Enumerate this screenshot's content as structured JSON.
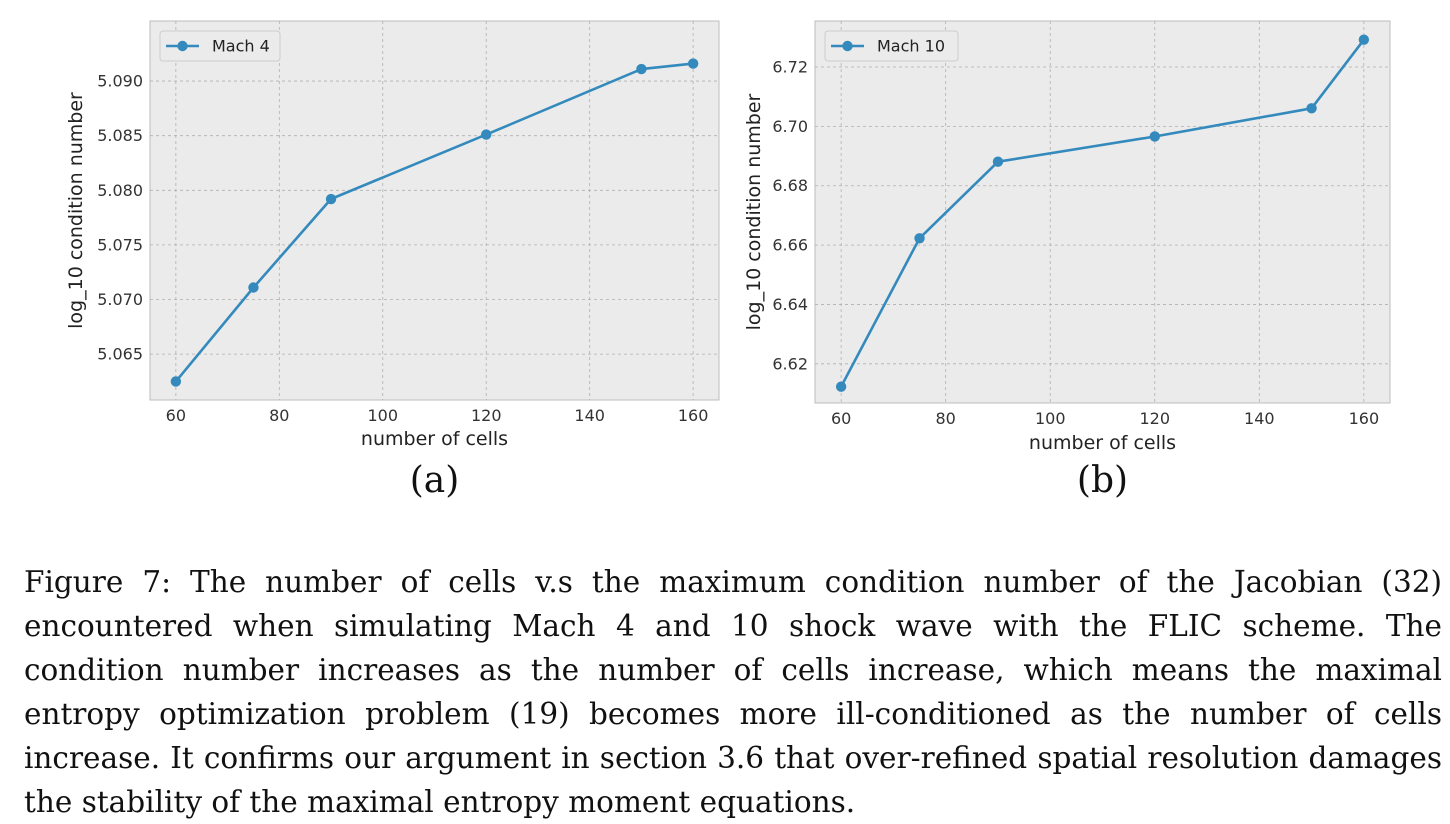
{
  "chart_data": [
    {
      "type": "line",
      "panel_label": "(a)",
      "xlabel": "number of cells",
      "ylabel": "log_10 condition number",
      "xlim": [
        55,
        165
      ],
      "ylim": [
        5.0608,
        5.0955
      ],
      "xticks": [
        "60",
        "80",
        "100",
        "120",
        "140",
        "160"
      ],
      "yticks": [
        "5.065",
        "5.070",
        "5.075",
        "5.080",
        "5.085",
        "5.090"
      ],
      "grid": true,
      "legend_position": "top-left",
      "series": [
        {
          "name": "Mach 4",
          "color": "#348abd",
          "x": [
            60,
            75,
            90,
            120,
            150,
            160
          ],
          "y": [
            5.0625,
            5.0711,
            5.0792,
            5.0851,
            5.0911,
            5.0916
          ]
        }
      ]
    },
    {
      "type": "line",
      "panel_label": "(b)",
      "xlabel": "number of cells",
      "ylabel": "log_10 condition number",
      "xlim": [
        55,
        165
      ],
      "ylim": [
        6.6068,
        6.7355
      ],
      "xticks": [
        "60",
        "80",
        "100",
        "120",
        "140",
        "160"
      ],
      "yticks": [
        "6.62",
        "6.64",
        "6.66",
        "6.68",
        "6.70",
        "6.72"
      ],
      "grid": true,
      "legend_position": "top-left",
      "series": [
        {
          "name": "Mach 10",
          "color": "#348abd",
          "x": [
            60,
            75,
            90,
            120,
            150,
            160
          ],
          "y": [
            6.6123,
            6.6623,
            6.6881,
            6.6966,
            6.7061,
            6.7292
          ]
        }
      ]
    }
  ],
  "caption": "Figure 7: The number of cells v.s the maximum condition number of the Jacobian (32) encountered when simulating Mach 4 and 10 shock wave with the FLIC scheme. The condition number increases as the number of cells increase, which means the maximal entropy optimization problem (19) becomes more ill-conditioned as the number of cells increase. It confirms our argument in section 3.6 that over-refined spatial resolution damages the stability of the maximal entropy moment equations.",
  "colors": {
    "plot_background": "#ebebeb",
    "grid": "#b0b0b0",
    "line": "#348abd"
  }
}
